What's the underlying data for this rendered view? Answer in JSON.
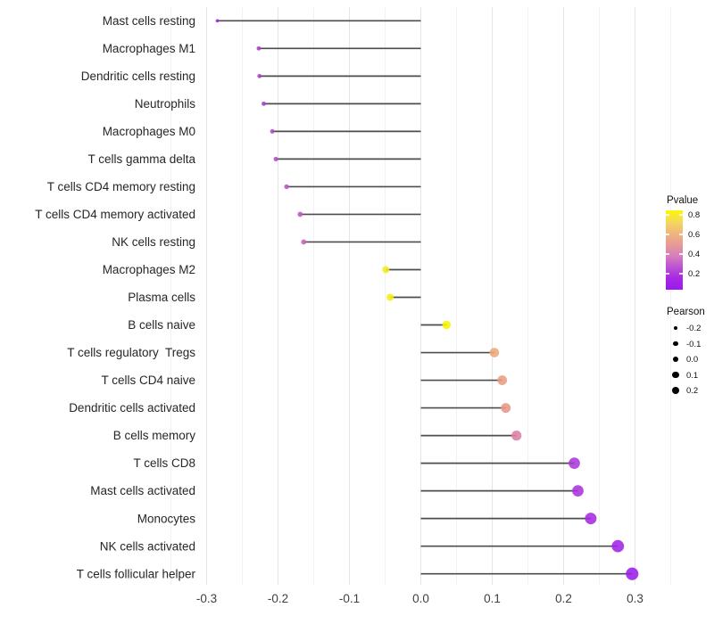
{
  "chart_data": {
    "type": "lollipop",
    "title": "",
    "xlabel": "",
    "ylabel": "",
    "xlim": [
      -0.36,
      0.36
    ],
    "x_major_ticks": [
      -0.3,
      -0.2,
      -0.1,
      0.0,
      0.1,
      0.2,
      0.3
    ],
    "x_tick_labels": [
      "-0.3",
      "-0.2",
      "-0.1",
      "0.0",
      "0.1",
      "0.2",
      "0.3"
    ],
    "x_minor_ticks": [
      -0.35,
      -0.25,
      -0.15,
      -0.05,
      0.05,
      0.15,
      0.25,
      0.35
    ],
    "grid": "vertical-major-and-minor",
    "legend_position": "right",
    "points": [
      {
        "label": "Mast cells resting",
        "pearson": -0.285,
        "pvalue_approx": 0.05,
        "color": "#A21DE8"
      },
      {
        "label": "Macrophages M1",
        "pearson": -0.227,
        "pvalue_approx": 0.18,
        "color": "#A83CCF"
      },
      {
        "label": "Dendritic cells resting",
        "pearson": -0.226,
        "pvalue_approx": 0.18,
        "color": "#A83CCF"
      },
      {
        "label": "Neutrophils",
        "pearson": -0.22,
        "pvalue_approx": 0.19,
        "color": "#AA3FCD"
      },
      {
        "label": "Macrophages M0",
        "pearson": -0.208,
        "pvalue_approx": 0.21,
        "color": "#B04ACA"
      },
      {
        "label": "T cells gamma delta",
        "pearson": -0.203,
        "pvalue_approx": 0.22,
        "color": "#B24DC9"
      },
      {
        "label": "T cells CD4 memory resting",
        "pearson": -0.188,
        "pvalue_approx": 0.25,
        "color": "#BB55C6"
      },
      {
        "label": "T cells CD4 memory activated",
        "pearson": -0.169,
        "pvalue_approx": 0.27,
        "color": "#C05AC3"
      },
      {
        "label": "NK cells resting",
        "pearson": -0.164,
        "pvalue_approx": 0.29,
        "color": "#C562C0"
      },
      {
        "label": "Macrophages M2",
        "pearson": -0.049,
        "pvalue_approx": 0.77,
        "color": "#F3EC1A"
      },
      {
        "label": "Plasma cells",
        "pearson": -0.043,
        "pvalue_approx": 0.79,
        "color": "#F5EF0E"
      },
      {
        "label": "B cells naive",
        "pearson": 0.036,
        "pvalue_approx": 0.83,
        "color": "#F8F402"
      },
      {
        "label": "T cells regulatory  Tregs",
        "pearson": 0.103,
        "pvalue_approx": 0.57,
        "color": "#ECA87B"
      },
      {
        "label": "T cells CD4 naive",
        "pearson": 0.114,
        "pvalue_approx": 0.53,
        "color": "#EA9C84"
      },
      {
        "label": "Dendritic cells activated",
        "pearson": 0.119,
        "pvalue_approx": 0.51,
        "color": "#E89589"
      },
      {
        "label": "B cells memory",
        "pearson": 0.134,
        "pvalue_approx": 0.42,
        "color": "#DC80A3"
      },
      {
        "label": "T cells CD8",
        "pearson": 0.215,
        "pvalue_approx": 0.16,
        "color": "#AC38D9"
      },
      {
        "label": "Mast cells activated",
        "pearson": 0.22,
        "pvalue_approx": 0.15,
        "color": "#AA34DB"
      },
      {
        "label": "Monocytes",
        "pearson": 0.238,
        "pvalue_approx": 0.12,
        "color": "#A52BE1"
      },
      {
        "label": "NK cells activated",
        "pearson": 0.276,
        "pvalue_approx": 0.08,
        "color": "#A024E6"
      },
      {
        "label": "T cells follicular helper",
        "pearson": 0.296,
        "pvalue_approx": 0.05,
        "color": "#9C1CEB"
      }
    ],
    "legend_pvalue": {
      "title": "Pvalue",
      "tick_labels": [
        "0.8",
        "0.6",
        "0.4",
        "0.2"
      ],
      "gradient_top_to_bottom": [
        "#FBF702",
        "#F4D95C",
        "#EFB77E",
        "#E89A94",
        "#D77FBB",
        "#BC52D5",
        "#A629E4",
        "#9D18EE"
      ]
    },
    "legend_pearson": {
      "title": "Pearson",
      "items": [
        {
          "label": "-0.2",
          "value": -0.2
        },
        {
          "label": "-0.1",
          "value": -0.1
        },
        {
          "label": "0.0",
          "value": 0.0
        },
        {
          "label": "0.1",
          "value": 0.1
        },
        {
          "label": "0.2",
          "value": 0.2
        }
      ]
    }
  },
  "colors": {
    "background": "#FFFFFF",
    "stem": "#4D4D4D",
    "grid_major": "#E5E5E5",
    "grid_minor": "#F2F2F2",
    "y_label_text": "#262626",
    "x_tick_text": "#404040",
    "legend_text": "#111111",
    "legend_dot": "#000000"
  }
}
